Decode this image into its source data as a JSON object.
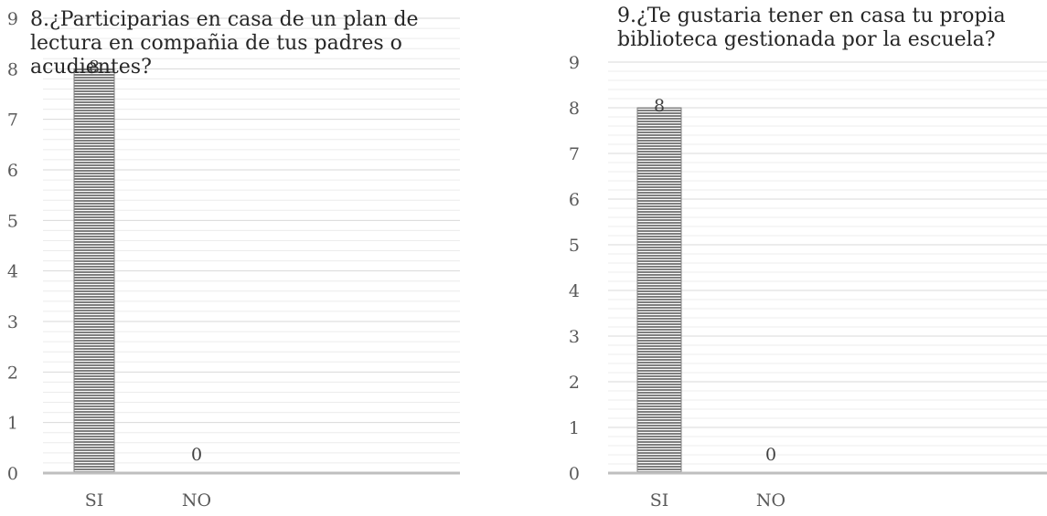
{
  "chart_data": [
    {
      "type": "bar",
      "title": "8.¿Participarias en casa de un plan de lectura en compañia de tus padres o acudientes?",
      "categories": [
        "SI",
        "NO"
      ],
      "values": [
        8,
        0
      ],
      "ylim": [
        0,
        9
      ],
      "yticks": [
        "0",
        "1",
        "2",
        "3",
        "4",
        "5",
        "6",
        "7",
        "8",
        "9"
      ],
      "grid": true,
      "bar_color": "#7f7f7f"
    },
    {
      "type": "bar",
      "title": "9.¿Te gustaria tener en casa tu propia biblioteca gestionada por la escuela?",
      "categories": [
        "SI",
        "NO"
      ],
      "values": [
        8,
        0
      ],
      "ylim": [
        0,
        9
      ],
      "yticks": [
        "0",
        "1",
        "2",
        "3",
        "4",
        "5",
        "6",
        "7",
        "8",
        "9"
      ],
      "grid": true,
      "bar_color": "#7f7f7f"
    }
  ]
}
